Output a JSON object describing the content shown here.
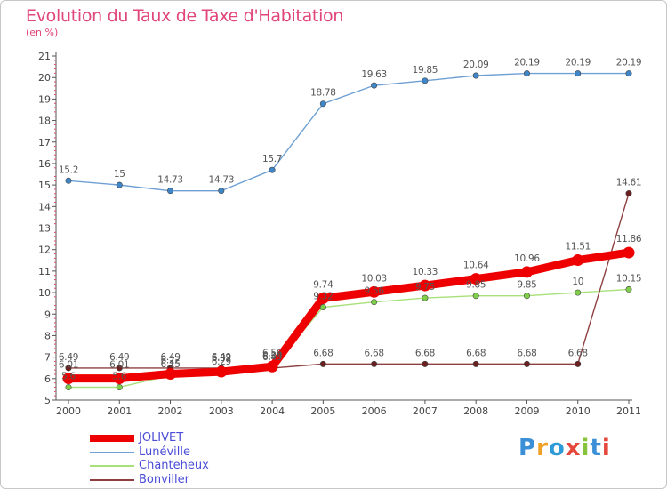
{
  "title": "Evolution du Taux de Taxe d'Habitation",
  "subtitle": "(en %)",
  "logo": {
    "text": "Proxiti",
    "letter_colors": [
      "#3a8fd6",
      "#f0a022",
      "#2f9ad8",
      "#e5483c",
      "#86c43b",
      "#3a8fd6",
      "#e5483c"
    ]
  },
  "chart_data": {
    "type": "line",
    "categories": [
      "2000",
      "2001",
      "2002",
      "2003",
      "2004",
      "2005",
      "2006",
      "2007",
      "2008",
      "2009",
      "2010",
      "2011"
    ],
    "ylim": [
      5,
      21
    ],
    "yticks": [
      "5",
      "6",
      "7",
      "8",
      "9",
      "10",
      "11",
      "12",
      "13",
      "14",
      "15",
      "16",
      "17",
      "18",
      "19",
      "20",
      "21"
    ],
    "grid": false,
    "legend_position": "bottom-left",
    "series": [
      {
        "name": "Lunéville",
        "color": "#6fa0d4",
        "marker_color": "#3f86c8",
        "values": [
          15.2,
          15,
          14.73,
          14.73,
          15.7,
          18.78,
          19.63,
          19.85,
          20.09,
          20.19,
          20.19,
          20.19
        ],
        "labels": [
          "15.2",
          "15",
          "14.73",
          "14.73",
          "15.7",
          "18.78",
          "19.63",
          "19.85",
          "20.09",
          "20.19",
          "20.19",
          "20.19"
        ]
      },
      {
        "name": "Chanteheux",
        "color": "#a8e07a",
        "marker_color": "#7fcf4a",
        "values": [
          5.6,
          5.6,
          6.15,
          6.29,
          6.54,
          9.32,
          9.56,
          9.75,
          9.85,
          9.85,
          10,
          10.15
        ],
        "labels": [
          "5.6",
          "5.6",
          "6.15",
          "6.29",
          "6.54",
          "9.32",
          "9.56",
          "9.75",
          "9.85",
          "9.85",
          "10",
          "10.15"
        ]
      },
      {
        "name": "Bonviller",
        "color": "#8e4040",
        "marker_color": "#6b1f1f",
        "values": [
          6.49,
          6.49,
          6.49,
          6.49,
          6.49,
          6.68,
          6.68,
          6.68,
          6.68,
          6.68,
          6.68,
          14.61
        ],
        "labels": [
          "6.49",
          "6.49",
          "6.49",
          "6.49",
          "6.49",
          "6.68",
          "6.68",
          "6.68",
          "6.68",
          "6.68",
          "6.68",
          "14.61"
        ]
      },
      {
        "name": "JOLIVET",
        "color": "#ee0000",
        "marker_color": "#ee0000",
        "values": [
          6.01,
          6.01,
          6.22,
          6.32,
          6.56,
          9.74,
          10.03,
          10.33,
          10.64,
          10.96,
          11.51,
          11.86
        ],
        "labels": [
          "6.01",
          "6.01",
          "6.22",
          "6.32",
          "6.56",
          "9.74",
          "10.03",
          "10.33",
          "10.64",
          "10.96",
          "11.51",
          "11.86"
        ]
      }
    ],
    "legend_order": [
      "JOLIVET",
      "Lunéville",
      "Chanteheux",
      "Bonviller"
    ]
  }
}
